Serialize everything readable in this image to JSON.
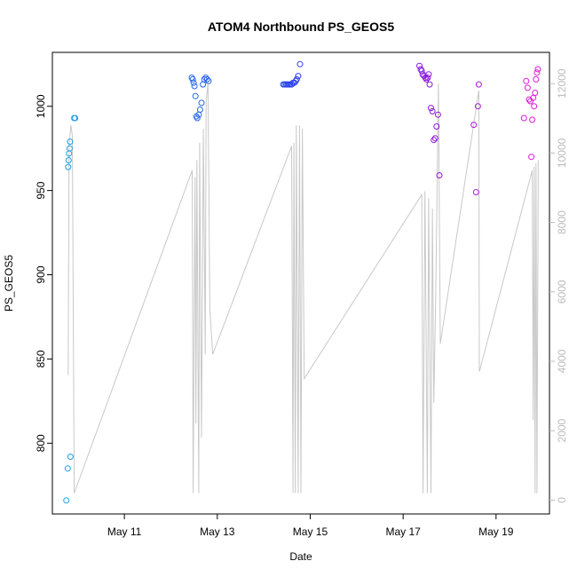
{
  "chart_data": {
    "type": "scatter",
    "title": "ATOM4 Northbound PS_GEOS5",
    "xlabel": "Date",
    "ylabel": "PS_GEOS5",
    "x_ticks": [
      {
        "label": "May 11",
        "day": 11
      },
      {
        "label": "May 13",
        "day": 13
      },
      {
        "label": "May 15",
        "day": 15
      },
      {
        "label": "May 17",
        "day": 17
      },
      {
        "label": "May 19",
        "day": 19
      }
    ],
    "xlim": [
      9.45,
      20.15
    ],
    "ylim": [
      758,
      1032
    ],
    "y_ticks": [
      800,
      850,
      900,
      950,
      1000
    ],
    "y2lim": [
      -400,
      12900
    ],
    "y2_ticks": [
      0,
      2000,
      4000,
      6000,
      8000,
      10000,
      12000
    ],
    "y2_color": "#bbbbbb",
    "line_color": "#c8c8c8",
    "point_colors": {
      "start": "#1ea0e6",
      "mid": "#2b3ff0",
      "late": "#8a18e0",
      "end": "#e01ad6"
    },
    "secondary_line": [
      [
        9.79,
        3600
      ],
      [
        9.81,
        10200
      ],
      [
        9.85,
        10800
      ],
      [
        9.88,
        10500
      ],
      [
        9.92,
        200
      ],
      [
        12.46,
        9500
      ],
      [
        12.48,
        200
      ],
      [
        12.52,
        9300
      ],
      [
        12.54,
        2200
      ],
      [
        12.56,
        9800
      ],
      [
        12.6,
        200
      ],
      [
        12.62,
        10300
      ],
      [
        12.66,
        1800
      ],
      [
        12.7,
        10700
      ],
      [
        12.74,
        4200
      ],
      [
        12.76,
        11500
      ],
      [
        12.8,
        12000
      ],
      [
        12.84,
        5500
      ],
      [
        12.9,
        4200
      ],
      [
        14.6,
        10200
      ],
      [
        14.63,
        200
      ],
      [
        14.65,
        10300
      ],
      [
        14.68,
        200
      ],
      [
        14.7,
        10800
      ],
      [
        14.74,
        200
      ],
      [
        14.77,
        10800
      ],
      [
        14.8,
        200
      ],
      [
        14.83,
        10700
      ],
      [
        14.87,
        3500
      ],
      [
        17.4,
        8800
      ],
      [
        17.43,
        200
      ],
      [
        17.47,
        8900
      ],
      [
        17.52,
        200
      ],
      [
        17.55,
        8700
      ],
      [
        17.6,
        200
      ],
      [
        17.63,
        8400
      ],
      [
        17.66,
        2800
      ],
      [
        17.7,
        5800
      ],
      [
        17.76,
        12000
      ],
      [
        17.8,
        4500
      ],
      [
        18.63,
        11800
      ],
      [
        18.64,
        3700
      ],
      [
        19.78,
        9500
      ],
      [
        19.8,
        2300
      ],
      [
        19.82,
        9600
      ],
      [
        19.84,
        200
      ],
      [
        19.86,
        9700
      ],
      [
        19.88,
        200
      ],
      [
        19.91,
        9800
      ]
    ],
    "series": [
      {
        "values": [
          [
            9.75,
            766
          ],
          [
            9.78,
            785
          ],
          [
            9.79,
            964
          ],
          [
            9.8,
            968
          ],
          [
            9.81,
            972
          ],
          [
            9.82,
            975
          ],
          [
            9.83,
            979
          ],
          [
            9.84,
            792
          ],
          [
            9.92,
            993
          ],
          [
            9.94,
            993
          ]
        ]
      },
      {
        "values": [
          [
            12.45,
            1017
          ],
          [
            12.47,
            1016
          ],
          [
            12.49,
            1014
          ],
          [
            12.51,
            1012
          ],
          [
            12.53,
            1006
          ],
          [
            12.55,
            994
          ],
          [
            12.57,
            993
          ],
          [
            12.6,
            995
          ],
          [
            12.63,
            998
          ],
          [
            12.66,
            1002
          ],
          [
            12.69,
            1013
          ],
          [
            12.72,
            1016
          ],
          [
            12.75,
            1017
          ],
          [
            12.78,
            1016
          ],
          [
            12.81,
            1015
          ]
        ]
      },
      {
        "values": [
          [
            14.42,
            1013
          ],
          [
            14.45,
            1013
          ],
          [
            14.48,
            1013
          ],
          [
            14.51,
            1013
          ],
          [
            14.54,
            1013
          ],
          [
            14.57,
            1013
          ],
          [
            14.6,
            1013
          ],
          [
            14.63,
            1014
          ],
          [
            14.66,
            1014
          ],
          [
            14.69,
            1015
          ],
          [
            14.71,
            1016
          ],
          [
            14.74,
            1018
          ],
          [
            14.78,
            1025
          ]
        ]
      },
      {
        "values": [
          [
            17.35,
            1024
          ],
          [
            17.38,
            1022
          ],
          [
            17.4,
            1021
          ],
          [
            17.42,
            1019
          ],
          [
            17.45,
            1018
          ],
          [
            17.48,
            1017
          ],
          [
            17.5,
            1016
          ],
          [
            17.53,
            1017
          ],
          [
            17.55,
            1019
          ],
          [
            17.57,
            1013
          ],
          [
            17.6,
            999
          ],
          [
            17.63,
            997
          ],
          [
            17.66,
            980
          ],
          [
            17.69,
            981
          ],
          [
            17.72,
            988
          ],
          [
            17.75,
            995
          ],
          [
            17.78,
            959
          ]
        ]
      },
      {
        "values": [
          [
            18.52,
            989
          ],
          [
            18.57,
            949
          ],
          [
            18.61,
            1000
          ],
          [
            18.63,
            1013
          ]
        ]
      },
      {
        "values": [
          [
            19.6,
            993
          ],
          [
            19.65,
            1015
          ],
          [
            19.68,
            1011
          ],
          [
            19.71,
            1004
          ],
          [
            19.74,
            1003
          ],
          [
            19.76,
            970
          ],
          [
            19.78,
            992
          ],
          [
            19.8,
            1005
          ],
          [
            19.82,
            1000
          ],
          [
            19.84,
            1008
          ],
          [
            19.86,
            1016
          ],
          [
            19.88,
            1020
          ],
          [
            19.9,
            1022
          ]
        ]
      }
    ]
  }
}
